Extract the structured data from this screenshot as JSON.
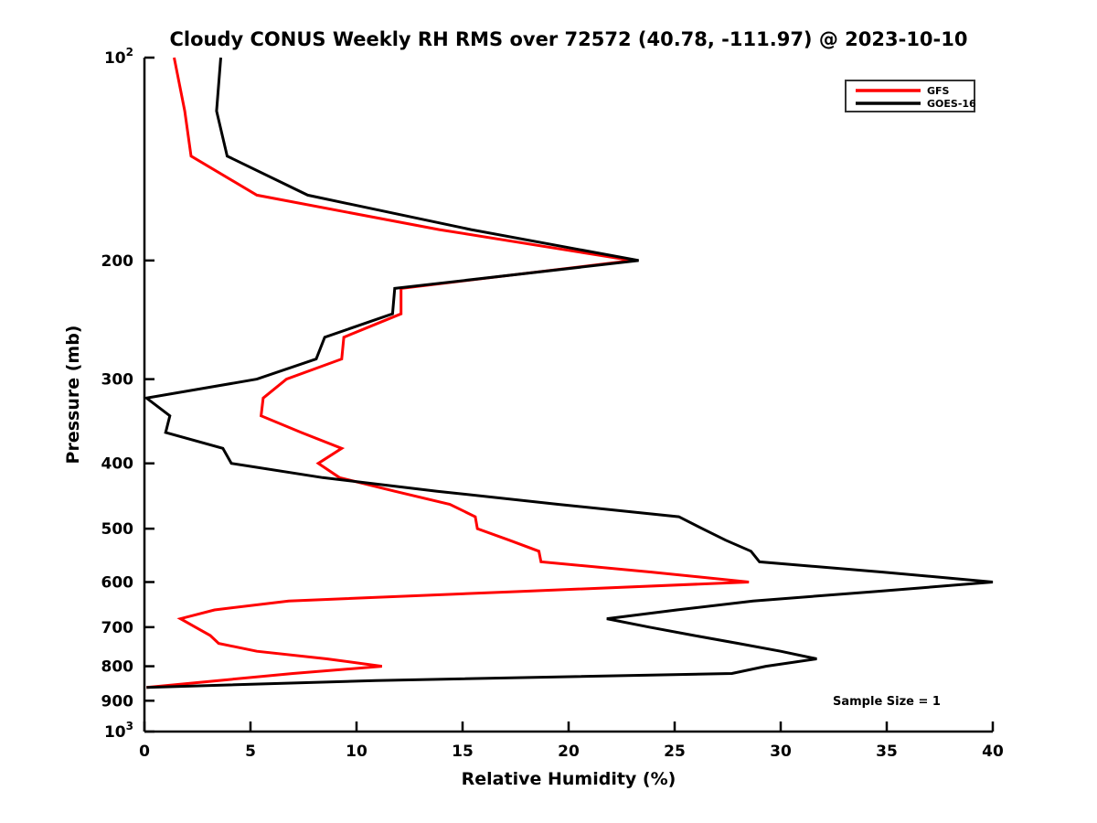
{
  "figure": {
    "title": "Cloudy CONUS Weekly RH RMS over 72572 (40.78, -111.97) @ 2023-10-10",
    "annotation": "Sample Size = 1"
  },
  "chart_data": {
    "type": "line",
    "title": "Cloudy CONUS Weekly RH RMS over 72572 (40.78, -111.97) @ 2023-10-10",
    "xlabel": "Relative Humidity (%)",
    "ylabel": "Pressure (mb)",
    "annotation": "Sample Size = 1",
    "grid": false,
    "legend_position": "upper right",
    "x_axis": {
      "min": 0,
      "max": 40,
      "tick_values": [
        0,
        5,
        10,
        15,
        20,
        25,
        30,
        35,
        40
      ],
      "tick_labels": [
        "0",
        "5",
        "10",
        "15",
        "20",
        "25",
        "30",
        "35",
        "40"
      ]
    },
    "y_axis": {
      "scale": "log10",
      "min": 100,
      "max": 1000,
      "inverted": true,
      "tick_values": [
        100,
        200,
        300,
        400,
        500,
        600,
        700,
        800,
        900,
        1000
      ],
      "tick_labels": [
        "10^2",
        "200",
        "300",
        "400",
        "500",
        "600",
        "700",
        "800",
        "900",
        "10^3"
      ]
    },
    "pressure_mb": [
      100,
      120,
      140,
      160,
      180,
      200,
      220,
      240,
      260,
      280,
      300,
      320,
      340,
      360,
      380,
      400,
      420,
      440,
      460,
      480,
      500,
      520,
      540,
      560,
      580,
      600,
      620,
      640,
      660,
      680,
      700,
      720,
      740,
      760,
      780,
      800,
      820,
      840,
      860
    ],
    "series": [
      {
        "name": "GFS",
        "color": "#ff0000",
        "values": [
          1.4,
          1.9,
          2.2,
          5.3,
          13.9,
          23.0,
          12.1,
          12.1,
          9.4,
          9.3,
          6.7,
          5.6,
          5.5,
          7.4,
          9.3,
          8.2,
          9.2,
          11.8,
          14.4,
          15.6,
          15.7,
          17.2,
          18.6,
          18.7,
          23.9,
          28.5,
          17.5,
          6.8,
          3.3,
          1.7,
          2.4,
          3.1,
          3.5,
          5.3,
          8.6,
          11.2,
          7.0,
          3.5,
          0.1
        ]
      },
      {
        "name": "GOES-16",
        "color": "#000000",
        "values": [
          3.6,
          3.4,
          3.9,
          7.7,
          15.4,
          23.3,
          11.8,
          11.7,
          8.5,
          8.1,
          5.3,
          0.1,
          1.2,
          1.0,
          3.7,
          4.1,
          8.4,
          13.8,
          19.5,
          25.2,
          26.3,
          27.4,
          28.6,
          29.0,
          34.8,
          40.0,
          34.4,
          28.7,
          25.1,
          21.8,
          23.8,
          25.9,
          28.0,
          30.0,
          31.7,
          29.3,
          27.7,
          10.9,
          0.1
        ]
      }
    ]
  }
}
